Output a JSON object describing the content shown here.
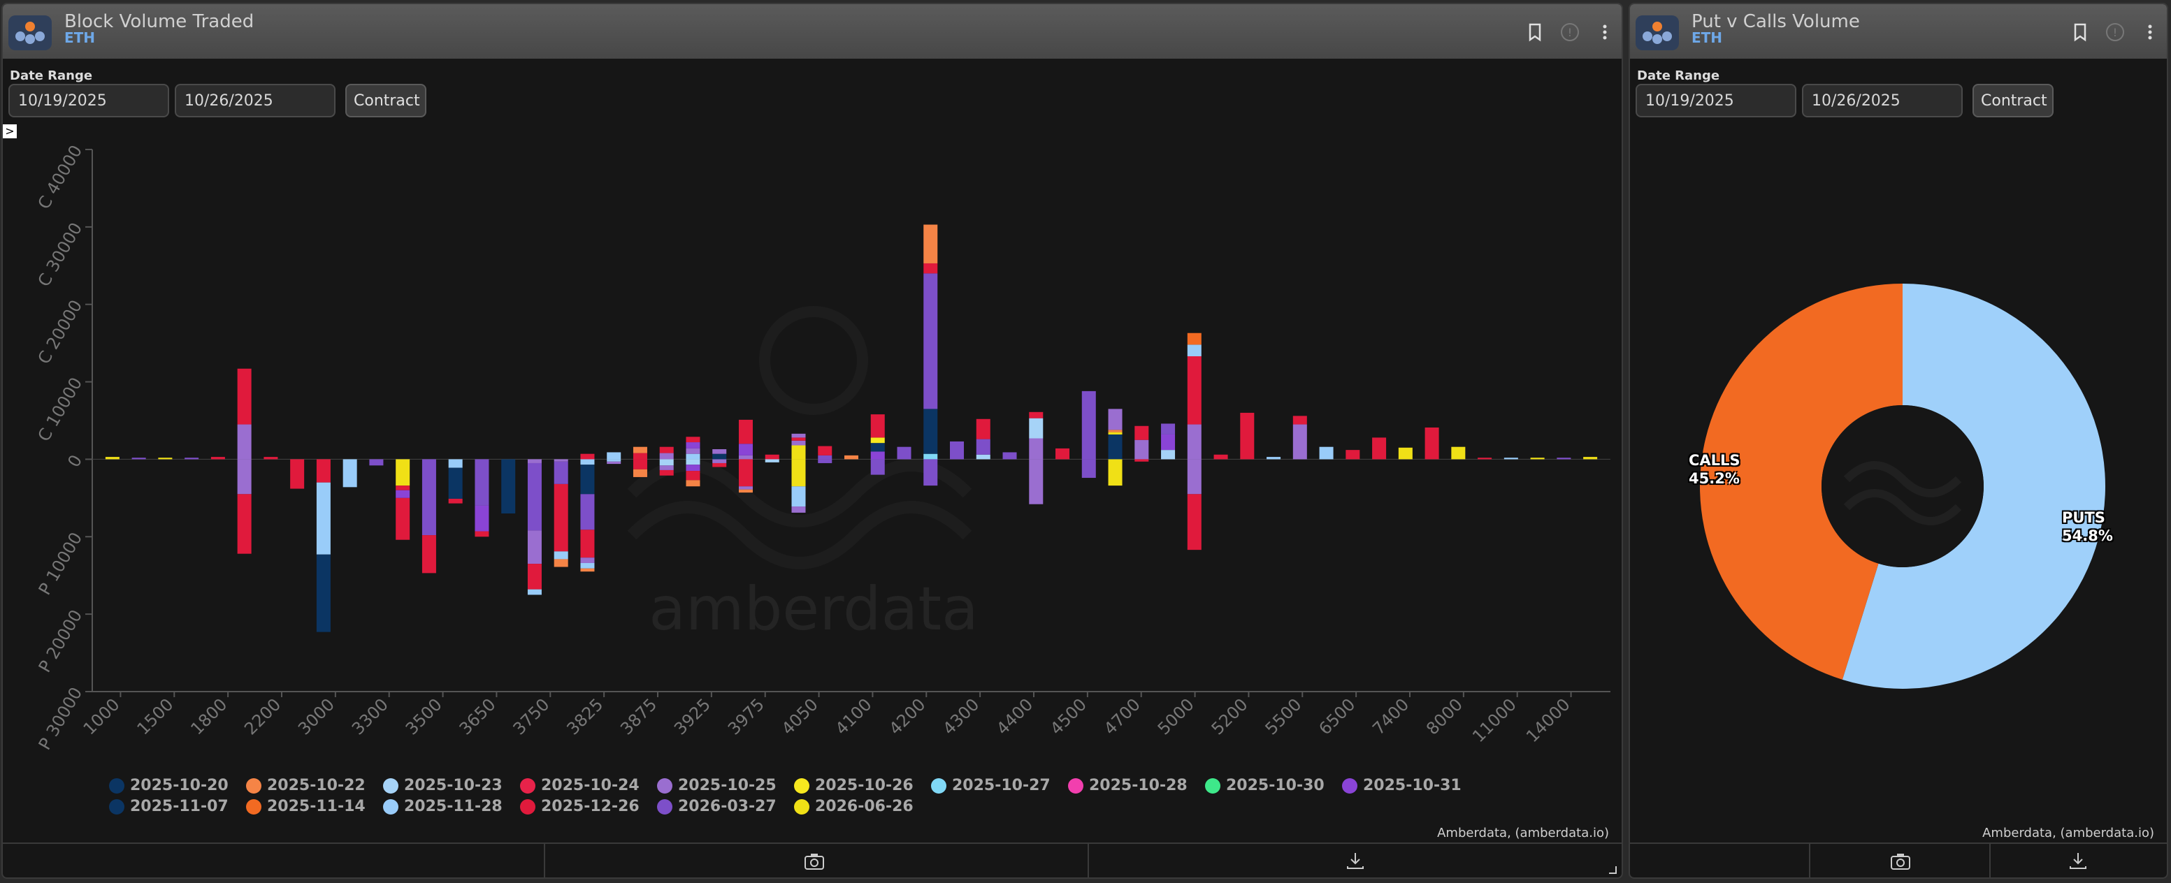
{
  "colors": {
    "2025-10-20": "#0b3563",
    "2025-10-22": "#f58446",
    "2025-10-23": "#a6d3f7",
    "2025-10-24": "#e8234a",
    "2025-10-25": "#9a6ed0",
    "2025-10-26": "#f7e81f",
    "2025-10-27": "#80d8f6",
    "2025-10-28": "#f23fae",
    "2025-10-30": "#3ee88a",
    "2025-10-31": "#8a44d6",
    "2025-11-07": "#0b3563",
    "2025-11-14": "#f26a22",
    "2025-11-28": "#99ccf9",
    "2025-12-26": "#e01a3c",
    "2026-03-27": "#7d4fc9",
    "2026-06-26": "#f0e016",
    "puts": "#9fd0fa",
    "calls": "#f26a22",
    "accent": "#6ea8e8"
  },
  "left_panel": {
    "title": "Block Volume Traded",
    "subtitle": "ETH",
    "date_range_label": "Date Range",
    "date_from": "10/19/2025",
    "date_to": "10/26/2025",
    "contract_label": "Contract",
    "credit": "Amberdata, (amberdata.io)",
    "watermark": "amberdata",
    "expand_label": ">",
    "icons": [
      "bookmark-icon",
      "info-icon",
      "more-icon",
      "camera-icon",
      "download-icon",
      "resize-icon"
    ]
  },
  "right_panel": {
    "title": "Put v Calls Volume",
    "subtitle": "ETH",
    "date_range_label": "Date Range",
    "date_from": "10/19/2025",
    "date_to": "10/26/2025",
    "contract_label": "Contract",
    "credit": "Amberdata, (amberdata.io)",
    "calls_label": "CALLS",
    "calls_pct": "45.2%",
    "puts_label": "PUTS",
    "puts_pct": "54.8%"
  },
  "legend": [
    "2025-10-20",
    "2025-10-22",
    "2025-10-23",
    "2025-10-24",
    "2025-10-25",
    "2025-10-26",
    "2025-10-27",
    "2025-10-28",
    "2025-10-30",
    "2025-10-31",
    "2025-11-07",
    "2025-11-14",
    "2025-11-28",
    "2025-12-26",
    "2026-03-27",
    "2026-06-26"
  ],
  "chart_data": [
    {
      "type": "bar",
      "stacked": true,
      "ylim": [
        -30000,
        40000
      ],
      "yticks": [
        {
          "v": 40000,
          "label": "C 40000"
        },
        {
          "v": 30000,
          "label": "C 30000"
        },
        {
          "v": 20000,
          "label": "C 20000"
        },
        {
          "v": 10000,
          "label": "C 10000"
        },
        {
          "v": 0,
          "label": "0"
        },
        {
          "v": -10000,
          "label": "P 10000"
        },
        {
          "v": -20000,
          "label": "P 20000"
        },
        {
          "v": -30000,
          "label": "P 30000"
        }
      ],
      "tick_labels": [
        "1000",
        "1500",
        "1800",
        "2200",
        "3000",
        "3300",
        "3500",
        "3650",
        "3750",
        "3825",
        "3875",
        "3925",
        "3975",
        "4050",
        "4100",
        "4200",
        "4300",
        "4400",
        "4500",
        "4700",
        "5000",
        "5200",
        "5500",
        "6500",
        "7400",
        "8000",
        "11000",
        "14000"
      ],
      "strikes": [
        {
          "calls": [
            [
              "2026-06-26",
              300
            ]
          ],
          "puts": []
        },
        {
          "calls": [
            [
              "2026-03-27",
              200
            ]
          ],
          "puts": []
        },
        {
          "calls": [
            [
              "2026-06-26",
              200
            ]
          ],
          "puts": []
        },
        {
          "calls": [
            [
              "2026-03-27",
              200
            ]
          ],
          "puts": []
        },
        {
          "calls": [
            [
              "2025-12-26",
              300
            ]
          ],
          "puts": []
        },
        {
          "calls": [
            [
              "2025-10-25",
              4500
            ],
            [
              "2025-12-26",
              7200
            ]
          ],
          "puts": [
            [
              "2025-10-25",
              4500
            ],
            [
              "2025-12-26",
              7700
            ]
          ]
        },
        {
          "calls": [
            [
              "2025-12-26",
              300
            ]
          ],
          "puts": []
        },
        {
          "calls": [],
          "puts": [
            [
              "2025-12-26",
              3800
            ]
          ]
        },
        {
          "calls": [],
          "puts": [
            [
              "2025-12-26",
              3000
            ],
            [
              "2025-11-28",
              9300
            ],
            [
              "2025-10-20",
              10000
            ]
          ]
        },
        {
          "calls": [],
          "puts": [
            [
              "2025-11-28",
              3600
            ]
          ]
        },
        {
          "calls": [],
          "puts": [
            [
              "2026-03-27",
              800
            ]
          ]
        },
        {
          "calls": [],
          "puts": [
            [
              "2026-06-26",
              3400
            ],
            [
              "2025-12-26",
              600
            ],
            [
              "2025-10-31",
              1000
            ],
            [
              "2025-12-26",
              5400
            ]
          ]
        },
        {
          "calls": [],
          "puts": [
            [
              "2026-03-27",
              9800
            ],
            [
              "2025-12-26",
              4900
            ]
          ]
        },
        {
          "calls": [],
          "puts": [
            [
              "2025-11-28",
              1100
            ],
            [
              "2025-11-07",
              4000
            ],
            [
              "2025-12-26",
              600
            ]
          ]
        },
        {
          "calls": [],
          "puts": [
            [
              "2026-03-27",
              6000
            ],
            [
              "2025-10-31",
              3300
            ],
            [
              "2025-12-26",
              700
            ]
          ]
        },
        {
          "calls": [],
          "puts": [
            [
              "2025-10-20",
              7000
            ]
          ]
        },
        {
          "calls": [],
          "puts": [
            [
              "2025-10-25",
              500
            ],
            [
              "2026-03-27",
              8700
            ],
            [
              "2025-10-25",
              4300
            ],
            [
              "2025-12-26",
              3300
            ],
            [
              "2025-11-28",
              700
            ]
          ]
        },
        {
          "calls": [],
          "puts": [
            [
              "2025-10-25",
              300
            ],
            [
              "2026-03-27",
              2900
            ],
            [
              "2025-12-26",
              8700
            ],
            [
              "2025-11-28",
              1000
            ],
            [
              "2025-10-22",
              1000
            ]
          ]
        },
        {
          "calls": [
            [
              "2025-12-26",
              700
            ]
          ],
          "puts": [
            [
              "2025-11-28",
              700
            ],
            [
              "2025-11-07",
              3800
            ],
            [
              "2026-03-27",
              4600
            ],
            [
              "2025-12-26",
              3600
            ],
            [
              "2025-10-25",
              700
            ],
            [
              "2025-11-28",
              700
            ],
            [
              "2025-10-22",
              400
            ]
          ]
        },
        {
          "calls": [
            [
              "2025-11-28",
              900
            ]
          ],
          "puts": [
            [
              "2025-11-28",
              300
            ],
            [
              "2025-10-25",
              300
            ]
          ]
        },
        {
          "calls": [
            [
              "2025-12-26",
              800
            ],
            [
              "2025-10-22",
              800
            ]
          ],
          "puts": [
            [
              "2025-12-26",
              1300
            ],
            [
              "2025-10-22",
              1000
            ]
          ]
        },
        {
          "calls": [
            [
              "2025-10-25",
              800
            ],
            [
              "2025-12-26",
              800
            ]
          ],
          "puts": [
            [
              "2025-10-23",
              800
            ],
            [
              "2025-10-25",
              600
            ],
            [
              "2025-12-26",
              700
            ]
          ]
        },
        {
          "calls": [
            [
              "2025-11-28",
              700
            ],
            [
              "2025-10-25",
              700
            ],
            [
              "2025-10-31",
              800
            ],
            [
              "2025-12-26",
              700
            ]
          ],
          "puts": [
            [
              "2025-10-23",
              700
            ],
            [
              "2025-10-31",
              800
            ],
            [
              "2025-12-26",
              1200
            ],
            [
              "2025-10-22",
              800
            ]
          ]
        },
        {
          "calls": [
            [
              "2025-11-07",
              700
            ],
            [
              "2025-10-25",
              600
            ]
          ],
          "puts": [
            [
              "2025-10-25",
              500
            ],
            [
              "2025-12-26",
              500
            ]
          ]
        },
        {
          "calls": [
            [
              "2025-10-25",
              500
            ],
            [
              "2025-10-31",
              1500
            ],
            [
              "2025-12-26",
              3100
            ]
          ],
          "puts": [
            [
              "2025-12-26",
              3500
            ],
            [
              "2025-10-25",
              400
            ],
            [
              "2025-10-22",
              400
            ]
          ]
        },
        {
          "calls": [
            [
              "2025-12-26",
              600
            ]
          ],
          "puts": [
            [
              "2025-10-23",
              400
            ]
          ]
        },
        {
          "calls": [
            [
              "2026-06-26",
              1800
            ],
            [
              "2025-10-25",
              600
            ],
            [
              "2025-12-26",
              400
            ],
            [
              "2025-10-25",
              500
            ]
          ],
          "puts": [
            [
              "2026-06-26",
              3500
            ],
            [
              "2025-11-28",
              2600
            ],
            [
              "2025-10-25",
              800
            ]
          ]
        },
        {
          "calls": [
            [
              "2026-03-27",
              500
            ],
            [
              "2025-12-26",
              1200
            ]
          ],
          "puts": [
            [
              "2026-03-27",
              500
            ]
          ]
        },
        {
          "calls": [
            [
              "2025-10-22",
              500
            ]
          ],
          "puts": []
        },
        {
          "calls": [
            [
              "2025-10-31",
              1000
            ],
            [
              "2025-11-07",
              1100
            ],
            [
              "2025-10-26",
              700
            ],
            [
              "2025-12-26",
              3000
            ]
          ],
          "puts": [
            [
              "2026-03-27",
              2000
            ]
          ]
        },
        {
          "calls": [
            [
              "2026-03-27",
              1600
            ]
          ],
          "puts": []
        },
        {
          "calls": [
            [
              "2025-10-27",
              700
            ],
            [
              "2025-11-07",
              5800
            ],
            [
              "2026-03-27",
              17500
            ],
            [
              "2025-12-26",
              1300
            ],
            [
              "2025-10-22",
              5000
            ]
          ],
          "puts": [
            [
              "2026-03-27",
              3400
            ]
          ]
        },
        {
          "calls": [
            [
              "2026-03-27",
              2300
            ]
          ],
          "puts": []
        },
        {
          "calls": [
            [
              "2025-10-23",
              600
            ],
            [
              "2026-03-27",
              2000
            ],
            [
              "2025-12-26",
              2600
            ]
          ],
          "puts": []
        },
        {
          "calls": [
            [
              "2026-03-27",
              900
            ]
          ],
          "puts": []
        },
        {
          "calls": [
            [
              "2025-10-25",
              2700
            ],
            [
              "2025-10-23",
              2600
            ],
            [
              "2025-12-26",
              800
            ]
          ],
          "puts": [
            [
              "2025-10-25",
              5800
            ]
          ]
        },
        {
          "calls": [
            [
              "2025-12-26",
              1400
            ]
          ],
          "puts": []
        },
        {
          "calls": [
            [
              "2026-03-27",
              8800
            ]
          ],
          "puts": [
            [
              "2026-03-27",
              2400
            ]
          ]
        },
        {
          "calls": [
            [
              "2025-11-07",
              3200
            ],
            [
              "2026-06-26",
              300
            ],
            [
              "2025-10-22",
              300
            ],
            [
              "2025-10-25",
              2700
            ]
          ],
          "puts": [
            [
              "2026-06-26",
              3400
            ]
          ]
        },
        {
          "calls": [
            [
              "2025-10-25",
              2500
            ],
            [
              "2025-12-26",
              1800
            ]
          ],
          "puts": [
            [
              "2025-12-26",
              300
            ]
          ]
        },
        {
          "calls": [
            [
              "2025-10-23",
              1200
            ],
            [
              "2025-10-31",
              2000
            ],
            [
              "2026-03-27",
              1400
            ]
          ],
          "puts": []
        },
        {
          "calls": [
            [
              "2025-10-25",
              4500
            ],
            [
              "2025-12-26",
              8800
            ],
            [
              "2025-11-28",
              1500
            ],
            [
              "2025-11-14",
              1500
            ]
          ],
          "puts": [
            [
              "2025-10-25",
              4500
            ],
            [
              "2025-12-26",
              7200
            ]
          ]
        },
        {
          "calls": [
            [
              "2025-12-26",
              600
            ]
          ],
          "puts": []
        },
        {
          "calls": [
            [
              "2025-12-26",
              6000
            ]
          ],
          "puts": []
        },
        {
          "calls": [
            [
              "2025-11-28",
              300
            ]
          ],
          "puts": []
        },
        {
          "calls": [
            [
              "2025-10-25",
              4500
            ],
            [
              "2025-12-26",
              1100
            ]
          ],
          "puts": []
        },
        {
          "calls": [
            [
              "2025-11-28",
              1600
            ]
          ],
          "puts": []
        },
        {
          "calls": [
            [
              "2025-12-26",
              1200
            ]
          ],
          "puts": []
        },
        {
          "calls": [
            [
              "2025-12-26",
              2800
            ]
          ],
          "puts": []
        },
        {
          "calls": [
            [
              "2026-06-26",
              1500
            ]
          ],
          "puts": []
        },
        {
          "calls": [
            [
              "2025-12-26",
              4100
            ]
          ],
          "puts": []
        },
        {
          "calls": [
            [
              "2026-06-26",
              1600
            ]
          ],
          "puts": []
        },
        {
          "calls": [
            [
              "2025-12-26",
              200
            ]
          ],
          "puts": []
        },
        {
          "calls": [
            [
              "2025-11-28",
              200
            ]
          ],
          "puts": []
        },
        {
          "calls": [
            [
              "2026-06-26",
              200
            ]
          ],
          "puts": []
        },
        {
          "calls": [
            [
              "2026-03-27",
              200
            ]
          ],
          "puts": []
        },
        {
          "calls": [
            [
              "2026-06-26",
              300
            ]
          ],
          "puts": []
        }
      ]
    },
    {
      "type": "pie",
      "donut": true,
      "slices": [
        {
          "label": "PUTS",
          "value": 54.8,
          "color": "#9fd0fa"
        },
        {
          "label": "CALLS",
          "value": 45.2,
          "color": "#f26a22"
        }
      ]
    }
  ]
}
